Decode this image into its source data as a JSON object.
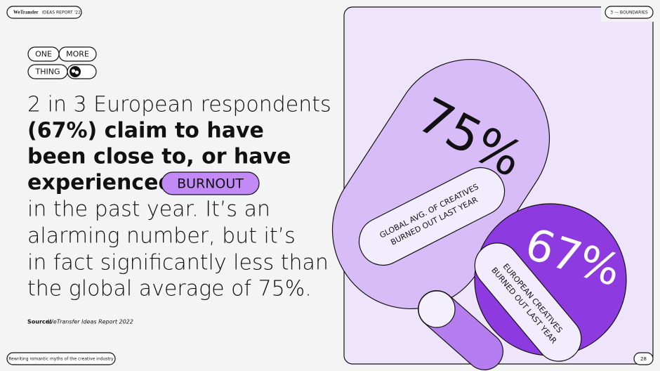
{
  "header": {
    "brand": "WeTransfer",
    "report": "IDEAS REPORT '22",
    "section": "3 — BOUNDARIES"
  },
  "tags": [
    "ONE",
    "MORE",
    "THING"
  ],
  "headline": {
    "intro_line": "2 in 3 European respondents",
    "bold_lines": [
      "(67%) claim to have",
      "been close to, or have",
      "experienced"
    ],
    "highlight": "BURNOUT",
    "closing_lines": [
      "in the past year. It’s an",
      "alarming number, but it’s",
      "in fact significantly less than",
      "the global average of 75%."
    ]
  },
  "source": {
    "label": "Source:",
    "text": "WeTransfer Ideas Report 2022"
  },
  "graphic": {
    "global": {
      "figure": "75%",
      "caption_lines": [
        "GLOBAL AVG. OF CREATIVES",
        "BURNED OUT LAST YEAR"
      ]
    },
    "europe": {
      "figure": "67%",
      "caption_lines": [
        "EUROPEAN CREATIVES",
        "BURNED OUT LAST YEAR"
      ]
    }
  },
  "footer": {
    "tagline": "Rewriting romantic myths of the creative industry",
    "page": "28"
  }
}
